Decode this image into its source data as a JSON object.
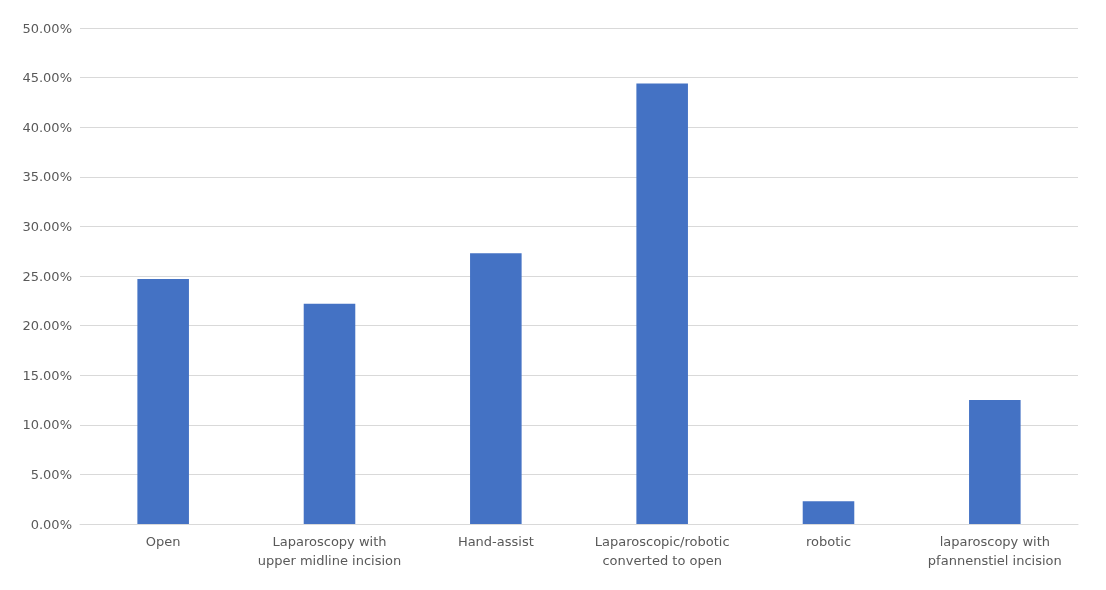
{
  "chart_data": {
    "type": "bar",
    "categories": [
      "Open",
      "Laparoscopy with\nupper midline incision",
      "Hand-assist",
      "Laparoscopic/robotic\nconverted to open",
      "robotic",
      "laparoscopy with\npfannenstiel incision"
    ],
    "values": [
      24.7,
      22.2,
      27.3,
      44.4,
      2.3,
      12.5
    ],
    "color": "#4472c4",
    "ylim": [
      0,
      50
    ],
    "yticks": [
      {
        "value": 0,
        "label": "0.00%"
      },
      {
        "value": 5,
        "label": "5.00%"
      },
      {
        "value": 10,
        "label": "10.00%"
      },
      {
        "value": 15,
        "label": "15.00%"
      },
      {
        "value": 20,
        "label": "20.00%"
      },
      {
        "value": 25,
        "label": "25.00%"
      },
      {
        "value": 30,
        "label": "30.00%"
      },
      {
        "value": 35,
        "label": "35.00%"
      },
      {
        "value": 40,
        "label": "40.00%"
      },
      {
        "value": 45,
        "label": "45.00%"
      },
      {
        "value": 50,
        "label": "50.00%"
      }
    ],
    "grid": "y"
  }
}
